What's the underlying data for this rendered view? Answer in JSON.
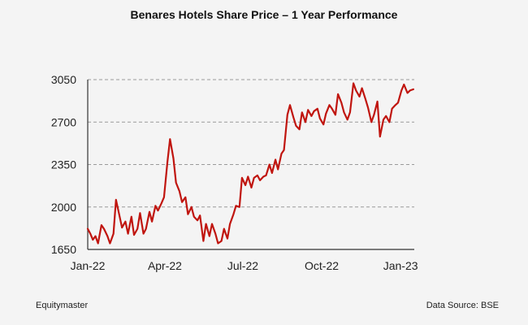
{
  "chart_data": {
    "type": "line",
    "title": "Benares Hotels Share Price – 1 Year Performance",
    "xlabel": "",
    "ylabel": "",
    "ylim": [
      1650,
      3050
    ],
    "y_ticks": [
      1650,
      2000,
      2350,
      2700,
      3050
    ],
    "x_ticks": [
      "Jan-22",
      "Apr-22",
      "Jul-22",
      "Oct-22",
      "Jan-23"
    ],
    "x_tick_dates": [
      "2022-01-01",
      "2022-04-01",
      "2022-07-01",
      "2022-10-01",
      "2023-01-01"
    ],
    "x_range": [
      "2022-01-01",
      "2023-01-17"
    ],
    "grid": "horizontal dashed",
    "line_color": "#c0150f",
    "series": [
      {
        "x": [
          "2022-01-01",
          "2022-01-04",
          "2022-01-07",
          "2022-01-10",
          "2022-01-13",
          "2022-01-17",
          "2022-01-20",
          "2022-01-24",
          "2022-01-27",
          "2022-01-31",
          "2022-02-03",
          "2022-02-07",
          "2022-02-10",
          "2022-02-14",
          "2022-02-17",
          "2022-02-21",
          "2022-02-24",
          "2022-02-28",
          "2022-03-03",
          "2022-03-07",
          "2022-03-10",
          "2022-03-14",
          "2022-03-17",
          "2022-03-21",
          "2022-03-24",
          "2022-03-28",
          "2022-03-31",
          "2022-04-04",
          "2022-04-07",
          "2022-04-11",
          "2022-04-14",
          "2022-04-18",
          "2022-04-21",
          "2022-04-25",
          "2022-04-28",
          "2022-05-02",
          "2022-05-05",
          "2022-05-09",
          "2022-05-12",
          "2022-05-16",
          "2022-05-19",
          "2022-05-23",
          "2022-05-26",
          "2022-05-30",
          "2022-06-02",
          "2022-06-06",
          "2022-06-09",
          "2022-06-13",
          "2022-06-16",
          "2022-06-20",
          "2022-06-23",
          "2022-06-27",
          "2022-06-30",
          "2022-07-04",
          "2022-07-07",
          "2022-07-11",
          "2022-07-14",
          "2022-07-18",
          "2022-07-21",
          "2022-07-25",
          "2022-07-28",
          "2022-08-01",
          "2022-08-04",
          "2022-08-08",
          "2022-08-11",
          "2022-08-15",
          "2022-08-18",
          "2022-08-22",
          "2022-08-25",
          "2022-08-29",
          "2022-09-01",
          "2022-09-05",
          "2022-09-08",
          "2022-09-12",
          "2022-09-15",
          "2022-09-19",
          "2022-09-22",
          "2022-09-26",
          "2022-09-29",
          "2022-10-03",
          "2022-10-06",
          "2022-10-10",
          "2022-10-13",
          "2022-10-17",
          "2022-10-20",
          "2022-10-24",
          "2022-10-27",
          "2022-10-31",
          "2022-11-03",
          "2022-11-07",
          "2022-11-10",
          "2022-11-14",
          "2022-11-17",
          "2022-11-21",
          "2022-11-24",
          "2022-11-28",
          "2022-12-01",
          "2022-12-05",
          "2022-12-08",
          "2022-12-12",
          "2022-12-15",
          "2022-12-19",
          "2022-12-22",
          "2022-12-26",
          "2022-12-29",
          "2023-01-02",
          "2023-01-05",
          "2023-01-09",
          "2023-01-12",
          "2023-01-16"
        ],
        "values": [
          1820,
          1780,
          1730,
          1760,
          1700,
          1850,
          1820,
          1760,
          1700,
          1780,
          2060,
          1930,
          1830,
          1880,
          1780,
          1920,
          1770,
          1820,
          1950,
          1780,
          1820,
          1960,
          1880,
          2010,
          1970,
          2030,
          2080,
          2370,
          2560,
          2400,
          2200,
          2130,
          2040,
          2080,
          1940,
          2000,
          1920,
          1890,
          1930,
          1720,
          1860,
          1760,
          1860,
          1780,
          1700,
          1720,
          1820,
          1740,
          1860,
          1940,
          2010,
          2000,
          2240,
          2180,
          2250,
          2160,
          2240,
          2260,
          2220,
          2250,
          2260,
          2350,
          2280,
          2390,
          2310,
          2440,
          2470,
          2760,
          2840,
          2740,
          2670,
          2640,
          2780,
          2700,
          2800,
          2750,
          2790,
          2810,
          2730,
          2680,
          2770,
          2840,
          2810,
          2760,
          2930,
          2860,
          2780,
          2720,
          2780,
          3020,
          2960,
          2910,
          2980,
          2890,
          2820,
          2700,
          2760,
          2870,
          2580,
          2720,
          2750,
          2700,
          2810,
          2840,
          2860,
          2960,
          3010,
          2940,
          2960,
          2970
        ]
      }
    ]
  },
  "footer": {
    "left": "Equitymaster",
    "right": "Data Source: BSE"
  }
}
